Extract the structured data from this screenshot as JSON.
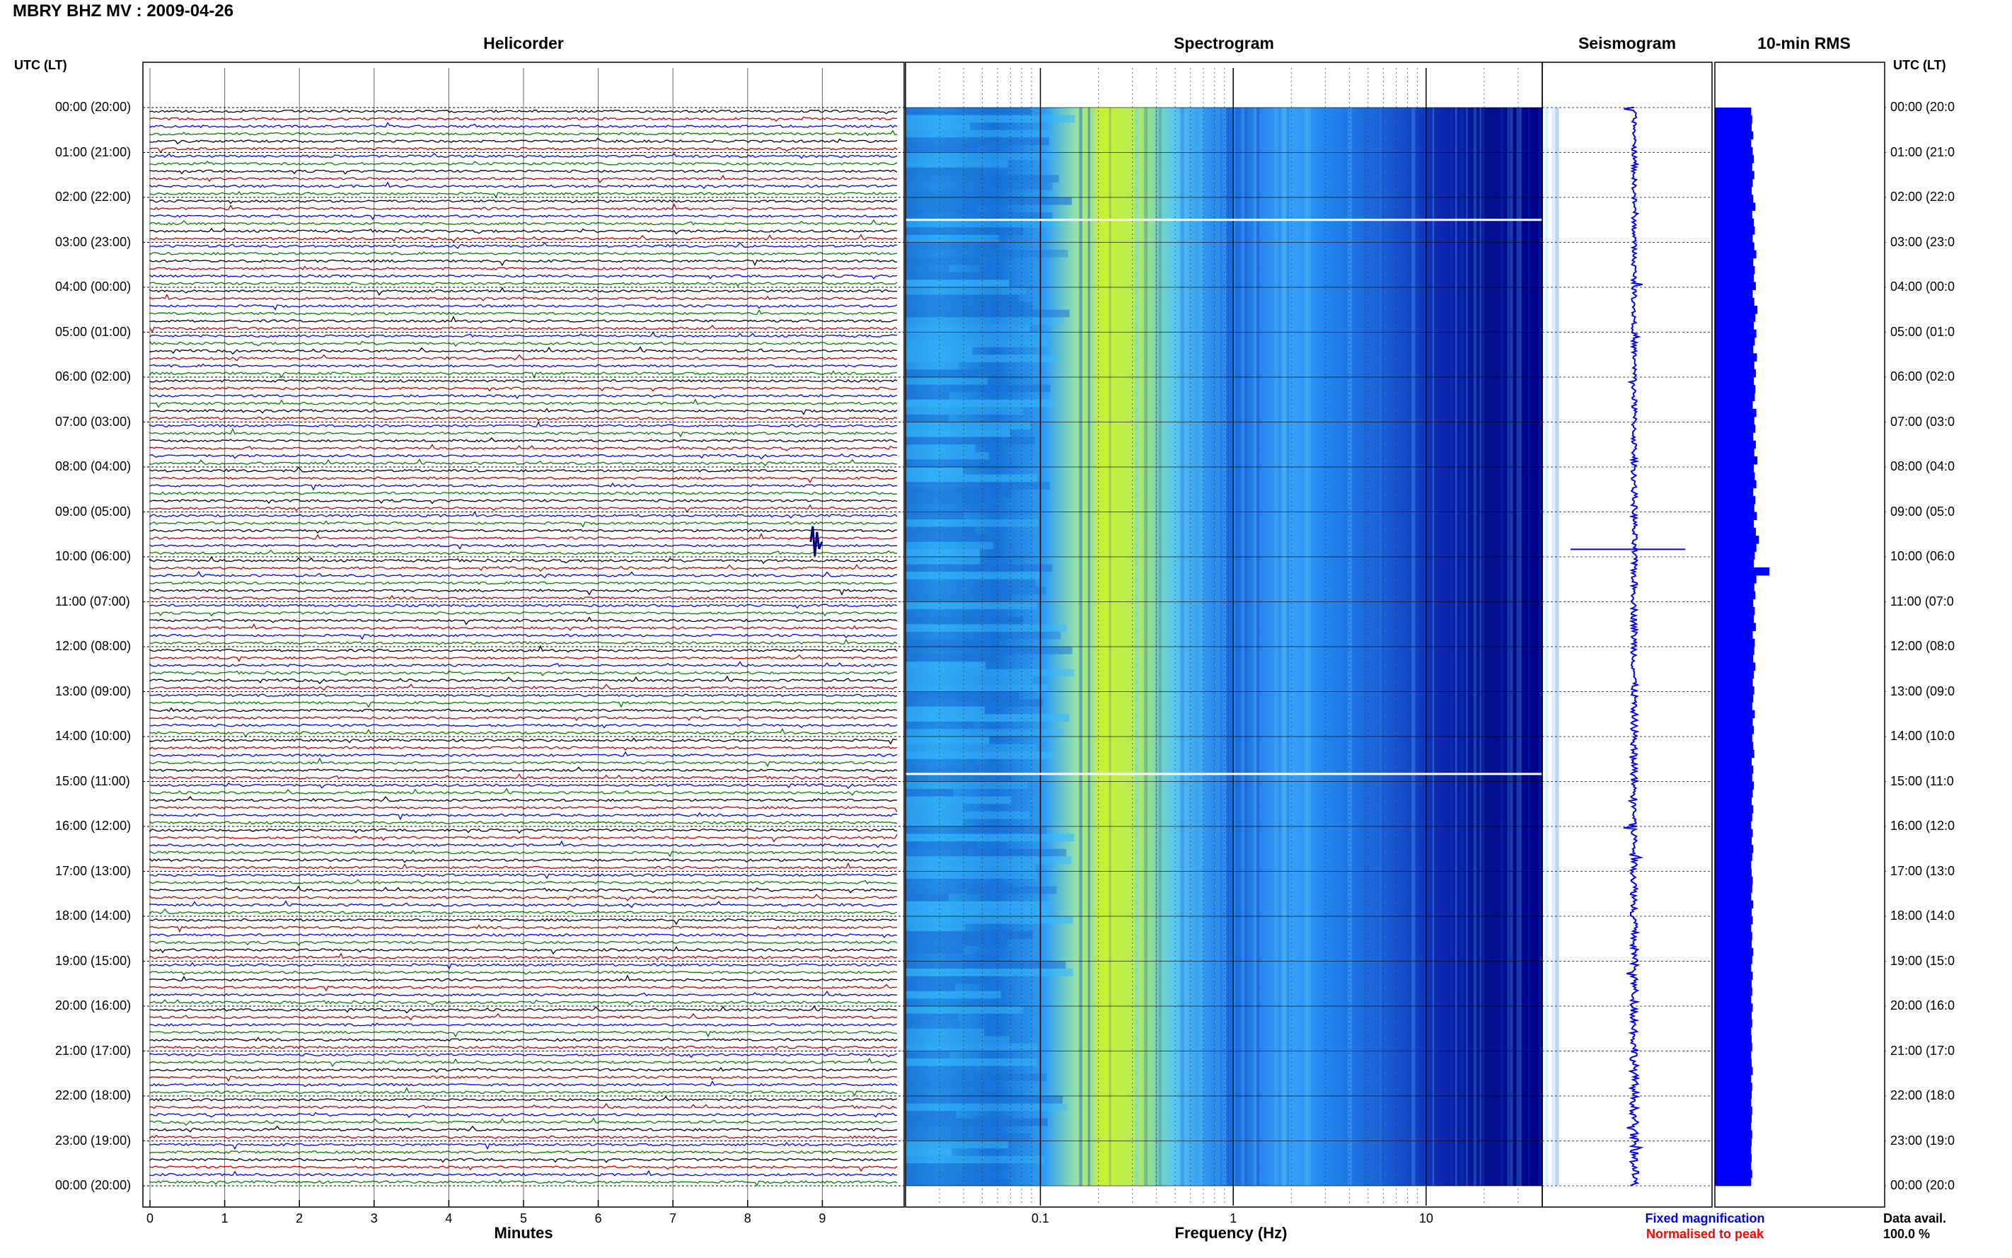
{
  "header": {
    "title": "MBRY BHZ MV : 2009-04-26"
  },
  "panels": {
    "helicorder": "Helicorder",
    "spectrogram": "Spectrogram",
    "seismogram": "Seismogram",
    "rms": "10-min RMS"
  },
  "axes": {
    "left_label": "UTC (LT)",
    "right_label": "UTC (LT)",
    "minutes_label": "Minutes",
    "frequency_label": "Frequency (Hz)",
    "minute_ticks": [
      "0",
      "1",
      "2",
      "3",
      "4",
      "5",
      "6",
      "7",
      "8",
      "9"
    ],
    "freq_ticks": [
      "0.1",
      "1",
      "10"
    ]
  },
  "time_labels": [
    "00:00 (20:00)",
    "01:00 (21:00)",
    "02:00 (22:00)",
    "03:00 (23:00)",
    "04:00 (00:00)",
    "05:00 (01:00)",
    "06:00 (02:00)",
    "07:00 (03:00)",
    "08:00 (04:00)",
    "09:00 (05:00)",
    "10:00 (06:00)",
    "11:00 (07:00)",
    "12:00 (08:00)",
    "13:00 (09:00)",
    "14:00 (10:00)",
    "15:00 (11:00)",
    "16:00 (12:00)",
    "17:00 (13:00)",
    "18:00 (14:00)",
    "19:00 (15:00)",
    "20:00 (16:00)",
    "21:00 (17:00)",
    "22:00 (18:00)",
    "23:00 (19:00)",
    "00:00 (20:00)"
  ],
  "right_time_labels": [
    "00:00 (20:0",
    "01:00 (21:0",
    "02:00 (22:0",
    "03:00 (23:0",
    "04:00 (00:0",
    "05:00 (01:0",
    "06:00 (02:0",
    "07:00 (03:0",
    "08:00 (04:0",
    "09:00 (05:0",
    "10:00 (06:0",
    "11:00 (07:0",
    "12:00 (08:0",
    "13:00 (09:0",
    "14:00 (10:0",
    "15:00 (11:0",
    "16:00 (12:0",
    "17:00 (13:0",
    "18:00 (14:0",
    "19:00 (15:0",
    "20:00 (16:0",
    "21:00 (17:0",
    "22:00 (18:0",
    "23:00 (19:0",
    "00:00 (20:0"
  ],
  "legend": {
    "fixed": "Fixed magnification",
    "normalised": "Normalised to peak",
    "data_avail_label": "Data avail.",
    "data_avail_value": "100.0 %"
  },
  "colors": {
    "trace_colors": [
      "#000000",
      "#c00000",
      "#0000ff",
      "#008000"
    ],
    "fixed": "#0000ff",
    "normalised": "#ff0000",
    "rms_bar": "#0000ff",
    "spectrogram_dark": "#00008b",
    "spectrogram_light": "#2ba8ff",
    "spectrogram_peak": "#c8f032"
  },
  "chart_data": [
    {
      "type": "line",
      "name": "Helicorder",
      "xlabel": "Minutes",
      "xlim": [
        0,
        10
      ],
      "hours": 24,
      "lines_per_hour": 6,
      "notable_events": [
        {
          "utc": "09:40",
          "minute": 8.9
        }
      ]
    },
    {
      "type": "heatmap",
      "name": "Spectrogram",
      "xlabel": "Frequency (Hz)",
      "xscale": "log",
      "xlim": [
        0.02,
        40
      ],
      "peak_band_hz": [
        0.17,
        0.6
      ],
      "gaps_utc": [
        "02:30",
        "14:50"
      ]
    },
    {
      "type": "line",
      "name": "Seismogram",
      "spike_utc": "09:50"
    },
    {
      "type": "bar",
      "name": "10-min RMS",
      "orientation": "horizontal",
      "values": [
        0.7,
        0.72,
        0.71,
        0.74,
        0.7,
        0.73,
        0.75,
        0.72,
        0.76,
        0.73,
        0.71,
        0.74,
        0.78,
        0.72,
        0.75,
        0.77,
        0.73,
        0.76,
        0.8,
        0.74,
        0.77,
        0.75,
        0.79,
        0.73,
        0.76,
        0.82,
        0.78,
        0.75,
        0.8,
        0.77,
        0.74,
        0.81,
        0.76,
        0.79,
        0.75,
        0.78,
        0.77,
        0.73,
        0.8,
        0.76,
        0.78,
        0.74,
        0.79,
        0.76,
        0.82,
        0.75,
        0.77,
        0.8,
        0.74,
        0.78,
        0.76,
        0.81,
        0.75,
        0.79,
        0.85,
        0.8,
        0.77,
        0.75,
        1.05,
        0.8,
        0.76,
        0.78,
        0.74,
        0.77,
        0.75,
        0.79,
        0.73,
        0.77,
        0.76,
        0.74,
        0.78,
        0.75,
        0.73,
        0.76,
        0.74,
        0.72,
        0.77,
        0.73,
        0.75,
        0.72,
        0.74,
        0.76,
        0.71,
        0.74,
        0.72,
        0.75,
        0.73,
        0.71,
        0.74,
        0.72,
        0.7,
        0.73,
        0.71,
        0.74,
        0.72,
        0.7,
        0.71,
        0.73,
        0.72,
        0.7,
        0.74,
        0.71,
        0.73,
        0.7,
        0.72,
        0.71,
        0.74,
        0.72,
        0.7,
        0.73,
        0.71,
        0.72,
        0.7,
        0.73,
        0.71,
        0.72,
        0.7,
        0.71,
        0.72,
        0.7,
        0.71,
        0.73,
        0.7,
        0.72,
        0.71,
        0.7,
        0.72,
        0.71,
        0.7,
        0.72,
        0.71,
        0.7,
        0.71,
        0.7,
        0.72,
        0.7
      ]
    }
  ]
}
